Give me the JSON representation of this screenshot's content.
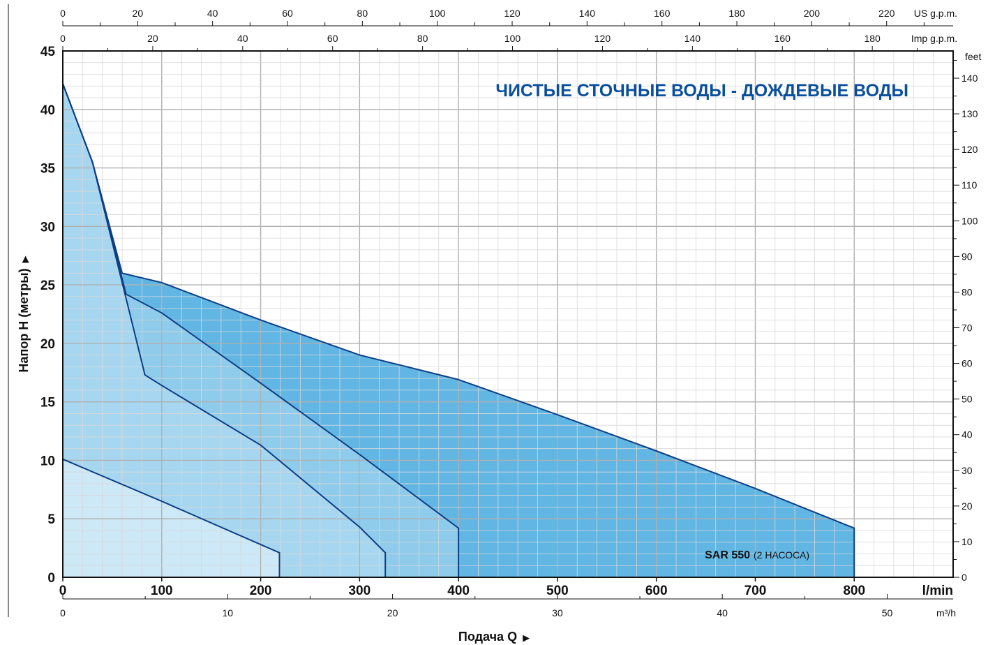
{
  "chart_data": {
    "type": "area",
    "title": "ЧИСТЫЕ СТОЧНЫЕ ВОДЫ - ДОЖДЕВЫЕ ВОДЫ",
    "xlabel": "Подача Q",
    "ylabel": "Напор Н  (метры)",
    "x_unit": "l/min",
    "y_unit": "",
    "xlim": [
      0,
      900
    ],
    "ylim": [
      0,
      45
    ],
    "x_ticks": [
      "0",
      "100",
      "200",
      "300",
      "400",
      "500",
      "600",
      "700",
      "800"
    ],
    "y_ticks": [
      "0",
      "5",
      "10",
      "15",
      "20",
      "25",
      "30",
      "35",
      "40",
      "45"
    ],
    "top_axis_us": {
      "unit": "US g.p.m.",
      "ticks": [
        "0",
        "20",
        "40",
        "60",
        "80",
        "100",
        "120",
        "140",
        "160",
        "180",
        "200",
        "220"
      ]
    },
    "top_axis_imp": {
      "unit": "Imp g.p.m.",
      "ticks": [
        "0",
        "20",
        "40",
        "60",
        "80",
        "100",
        "120",
        "140",
        "160",
        "180"
      ]
    },
    "right_axis": {
      "unit": "feet",
      "ticks": [
        "0",
        "10",
        "20",
        "30",
        "40",
        "50",
        "60",
        "70",
        "80",
        "90",
        "100",
        "110",
        "120",
        "130",
        "140"
      ]
    },
    "bottom_axis_m3h": {
      "unit": "m³/h",
      "ticks": [
        "0",
        "10",
        "20",
        "30",
        "40",
        "50"
      ]
    },
    "annotation": {
      "model": "SAR 550",
      "note": "(2 НАСОСА)"
    },
    "regions": [
      {
        "points": [
          [
            0,
            42.2
          ],
          [
            30,
            35.5
          ],
          [
            60,
            26.0
          ],
          [
            100,
            25.2
          ],
          [
            200,
            22.0
          ],
          [
            300,
            19.0
          ],
          [
            400,
            16.9
          ],
          [
            500,
            13.9
          ],
          [
            600,
            10.8
          ],
          [
            700,
            7.6
          ],
          [
            800,
            4.2
          ],
          [
            800,
            0
          ],
          [
            0,
            0
          ]
        ],
        "fill": "#62b6e3"
      },
      {
        "points": [
          [
            0,
            42.2
          ],
          [
            30,
            35.5
          ],
          [
            64,
            24.2
          ],
          [
            100,
            22.6
          ],
          [
            200,
            16.6
          ],
          [
            300,
            10.5
          ],
          [
            400,
            4.2
          ],
          [
            400,
            0
          ],
          [
            0,
            0
          ]
        ],
        "fill": "#8fcbea"
      },
      {
        "points": [
          [
            0,
            42.2
          ],
          [
            30,
            35.5
          ],
          [
            83,
            17.3
          ],
          [
            100,
            16.4
          ],
          [
            200,
            11.3
          ],
          [
            300,
            4.3
          ],
          [
            326,
            2.1
          ],
          [
            326,
            0
          ],
          [
            0,
            0
          ]
        ],
        "fill": "#a7d7f0"
      },
      {
        "points": [
          [
            0,
            10.1
          ],
          [
            100,
            6.5
          ],
          [
            200,
            2.8
          ],
          [
            219,
            2.1
          ],
          [
            219,
            0
          ],
          [
            0,
            0
          ]
        ],
        "fill": "#cde8f7"
      }
    ],
    "curve_color": "#0d3f86",
    "title_color": "#0b4f9c"
  }
}
